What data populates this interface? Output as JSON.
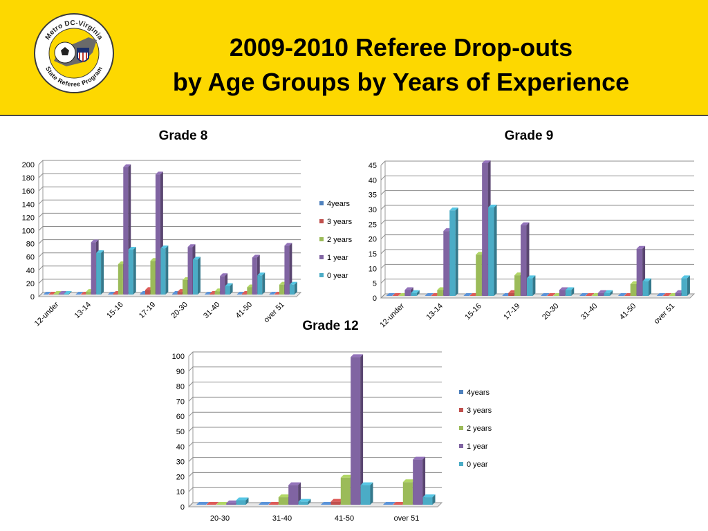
{
  "slide": {
    "title_line1": "2009-2010 Referee Drop-outs",
    "title_line2": "by Age Groups by Years of Experience",
    "logo": {
      "top_text": "Metro DC-Virginia",
      "bottom_text": "State Referee Program"
    }
  },
  "colors": {
    "header_bg": "#fdd800",
    "4years": "#4f81bd",
    "3 years": "#c0504d",
    "2 years": "#9bbb59",
    "1 year": "#8064a2",
    "0 year": "#4bacc6"
  },
  "chart_data": [
    {
      "type": "bar",
      "title": "Grade 8",
      "categories": [
        "12-under",
        "13-14",
        "15-16",
        "17-19",
        "20-30",
        "31-40",
        "41-50",
        "over 51"
      ],
      "ylim": [
        0,
        200
      ],
      "yticks": [
        0,
        20,
        40,
        60,
        80,
        100,
        120,
        140,
        160,
        180,
        200
      ],
      "legend": "right",
      "series": [
        {
          "name": "4years",
          "values": [
            0,
            0,
            0,
            1,
            1,
            0,
            0,
            0
          ]
        },
        {
          "name": "3 years",
          "values": [
            0,
            0,
            1,
            7,
            4,
            1,
            1,
            0
          ]
        },
        {
          "name": "2 years",
          "values": [
            1,
            4,
            46,
            51,
            22,
            5,
            11,
            15
          ]
        },
        {
          "name": "1 year",
          "values": [
            1,
            79,
            193,
            182,
            72,
            28,
            56,
            74
          ]
        },
        {
          "name": "0 year",
          "values": [
            1,
            63,
            68,
            70,
            53,
            13,
            29,
            15
          ]
        }
      ]
    },
    {
      "type": "bar",
      "title": "Grade 9",
      "categories": [
        "12-under",
        "13-14",
        "15-16",
        "17-19",
        "20-30",
        "31-40",
        "41-50",
        "over 51"
      ],
      "ylim": [
        0,
        45
      ],
      "yticks": [
        0,
        5,
        10,
        15,
        20,
        25,
        30,
        35,
        40,
        45
      ],
      "legend": "none",
      "series": [
        {
          "name": "4years",
          "values": [
            0,
            0,
            0,
            0,
            0,
            0,
            0,
            0
          ]
        },
        {
          "name": "3 years",
          "values": [
            0,
            0,
            0,
            1,
            0,
            0,
            0,
            0
          ]
        },
        {
          "name": "2 years",
          "values": [
            0,
            2,
            14,
            7,
            0,
            0,
            4,
            0
          ]
        },
        {
          "name": "1 year",
          "values": [
            2,
            22,
            45,
            24,
            2,
            1,
            16,
            1
          ]
        },
        {
          "name": "0 year",
          "values": [
            1,
            29,
            30,
            6,
            2,
            1,
            5,
            6
          ]
        }
      ]
    },
    {
      "type": "bar",
      "title": "Grade 12",
      "categories": [
        "20-30",
        "31-40",
        "41-50",
        "over 51"
      ],
      "ylim": [
        0,
        100
      ],
      "yticks": [
        0,
        10,
        20,
        30,
        40,
        50,
        60,
        70,
        80,
        90,
        100
      ],
      "legend": "right",
      "series": [
        {
          "name": "4years",
          "values": [
            0,
            0,
            0,
            0
          ]
        },
        {
          "name": "3 years",
          "values": [
            0,
            0,
            2,
            0
          ]
        },
        {
          "name": "2 years",
          "values": [
            0,
            5,
            18,
            15
          ]
        },
        {
          "name": "1 year",
          "values": [
            1,
            13,
            98,
            30
          ]
        },
        {
          "name": "0 year",
          "values": [
            3,
            2,
            13,
            5
          ]
        }
      ]
    }
  ]
}
